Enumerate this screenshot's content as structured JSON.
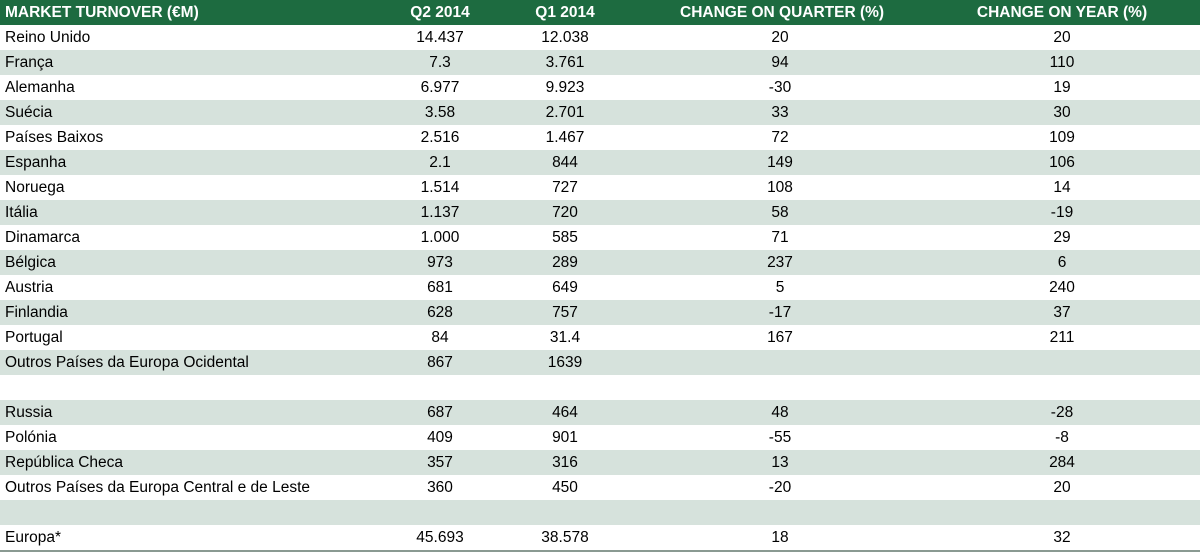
{
  "table": {
    "header": [
      "MARKET TURNOVER (€M)",
      "Q2 2014",
      "Q1 2014",
      "CHANGE ON QUARTER (%)",
      "CHANGE ON YEAR (%)"
    ],
    "groups": [
      [
        [
          "Reino Unido",
          "14.437",
          "12.038",
          "20",
          "20"
        ],
        [
          "França",
          "7.3",
          "3.761",
          "94",
          "110"
        ],
        [
          "Alemanha",
          "6.977",
          "9.923",
          "-30",
          "19"
        ],
        [
          "Suécia",
          "3.58",
          "2.701",
          "33",
          "30"
        ],
        [
          "Países Baixos",
          "2.516",
          "1.467",
          "72",
          "109"
        ],
        [
          "Espanha",
          "2.1",
          "844",
          "149",
          "106"
        ],
        [
          "Noruega",
          "1.514",
          "727",
          "108",
          "14"
        ],
        [
          "Itália",
          "1.137",
          "720",
          "58",
          "-19"
        ],
        [
          "Dinamarca",
          "1.000",
          "585",
          "71",
          "29"
        ],
        [
          "Bélgica",
          "973",
          "289",
          "237",
          "6"
        ],
        [
          "Austria",
          "681",
          "649",
          "5",
          "240"
        ],
        [
          "Finlandia",
          "628",
          "757",
          "-17",
          "37"
        ],
        [
          "Portugal",
          "84",
          "31.4",
          "167",
          "211"
        ],
        [
          "Outros Países da Europa Ocidental",
          "867",
          "1639"
        ]
      ],
      [
        [
          "Russia",
          "687",
          "464",
          "48",
          "-28"
        ],
        [
          "Polónia",
          "409",
          "901",
          "-55",
          "-8"
        ],
        [
          "República Checa",
          "357",
          "316",
          "13",
          "284"
        ],
        [
          "Outros Países da Europa Central e de Leste",
          "360",
          "450",
          "-20",
          "20"
        ]
      ],
      [
        [
          "Europa*",
          "45.693",
          "38.578",
          "18",
          "32"
        ]
      ]
    ]
  }
}
